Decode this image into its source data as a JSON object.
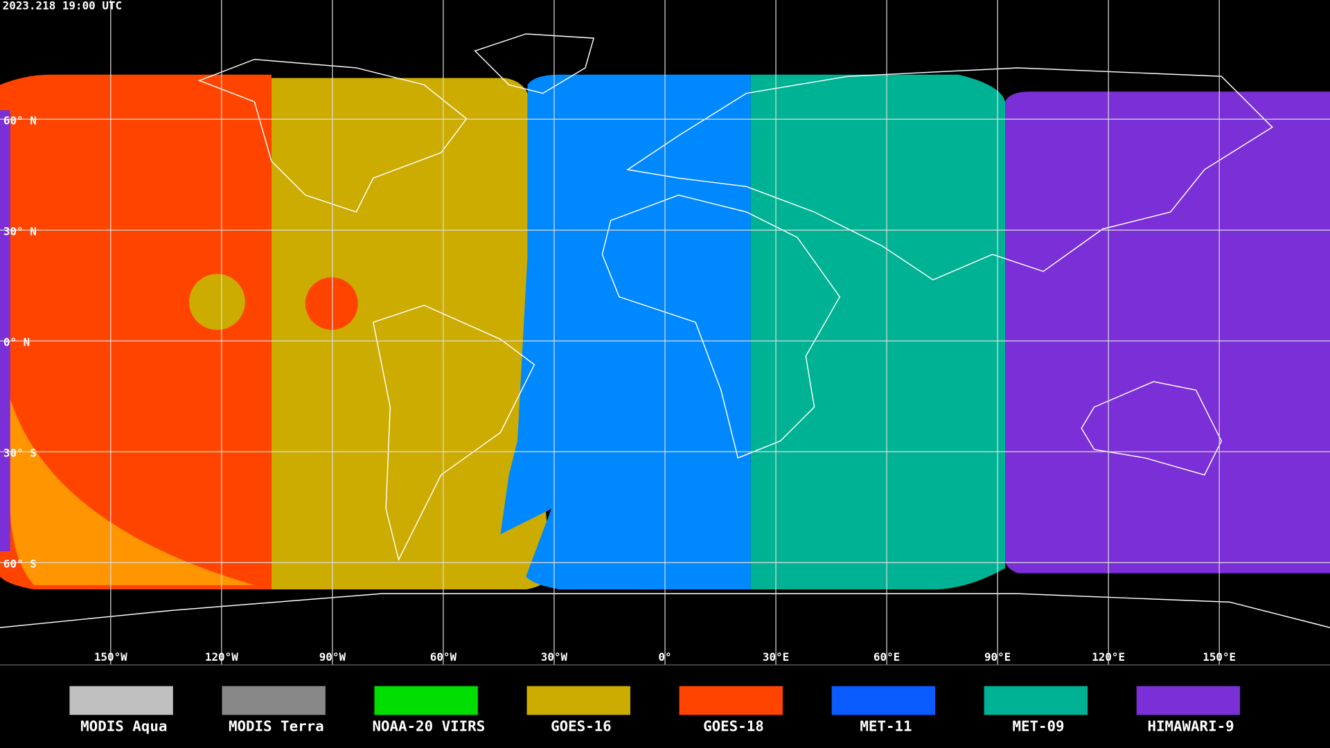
{
  "timestamp": "2023.218 19:00 UTC",
  "latitudes": [
    {
      "value": 60,
      "label": "60° N"
    },
    {
      "value": 30,
      "label": "30° N"
    },
    {
      "value": 0,
      "label": "0° N"
    },
    {
      "value": -30,
      "label": "30° S"
    },
    {
      "value": -60,
      "label": "60° S"
    }
  ],
  "longitudes": [
    {
      "value": -150,
      "label": "150°W"
    },
    {
      "value": -120,
      "label": "120°W"
    },
    {
      "value": -90,
      "label": "90°W"
    },
    {
      "value": -60,
      "label": "60°W"
    },
    {
      "value": -30,
      "label": "30°W"
    },
    {
      "value": 0,
      "label": "0°"
    },
    {
      "value": 30,
      "label": "30°E"
    },
    {
      "value": 60,
      "label": "60°E"
    },
    {
      "value": 90,
      "label": "90°E"
    },
    {
      "value": 120,
      "label": "120°E"
    },
    {
      "value": 150,
      "label": "150°E"
    }
  ],
  "legend": [
    {
      "name": "MODIS Aqua",
      "color": "#c0c0c0"
    },
    {
      "name": "MODIS Terra",
      "color": "#888888"
    },
    {
      "name": "NOAA-20 VIIRS",
      "color": "#00dd00"
    },
    {
      "name": "GOES-16",
      "color": "#ccac00"
    },
    {
      "name": "GOES-18",
      "color": "#ff4400"
    },
    {
      "name": "MET-11",
      "color": "#0a5cff"
    },
    {
      "name": "MET-09",
      "color": "#00b294"
    },
    {
      "name": "HIMAWARI-9",
      "color": "#7b2fd6"
    }
  ]
}
